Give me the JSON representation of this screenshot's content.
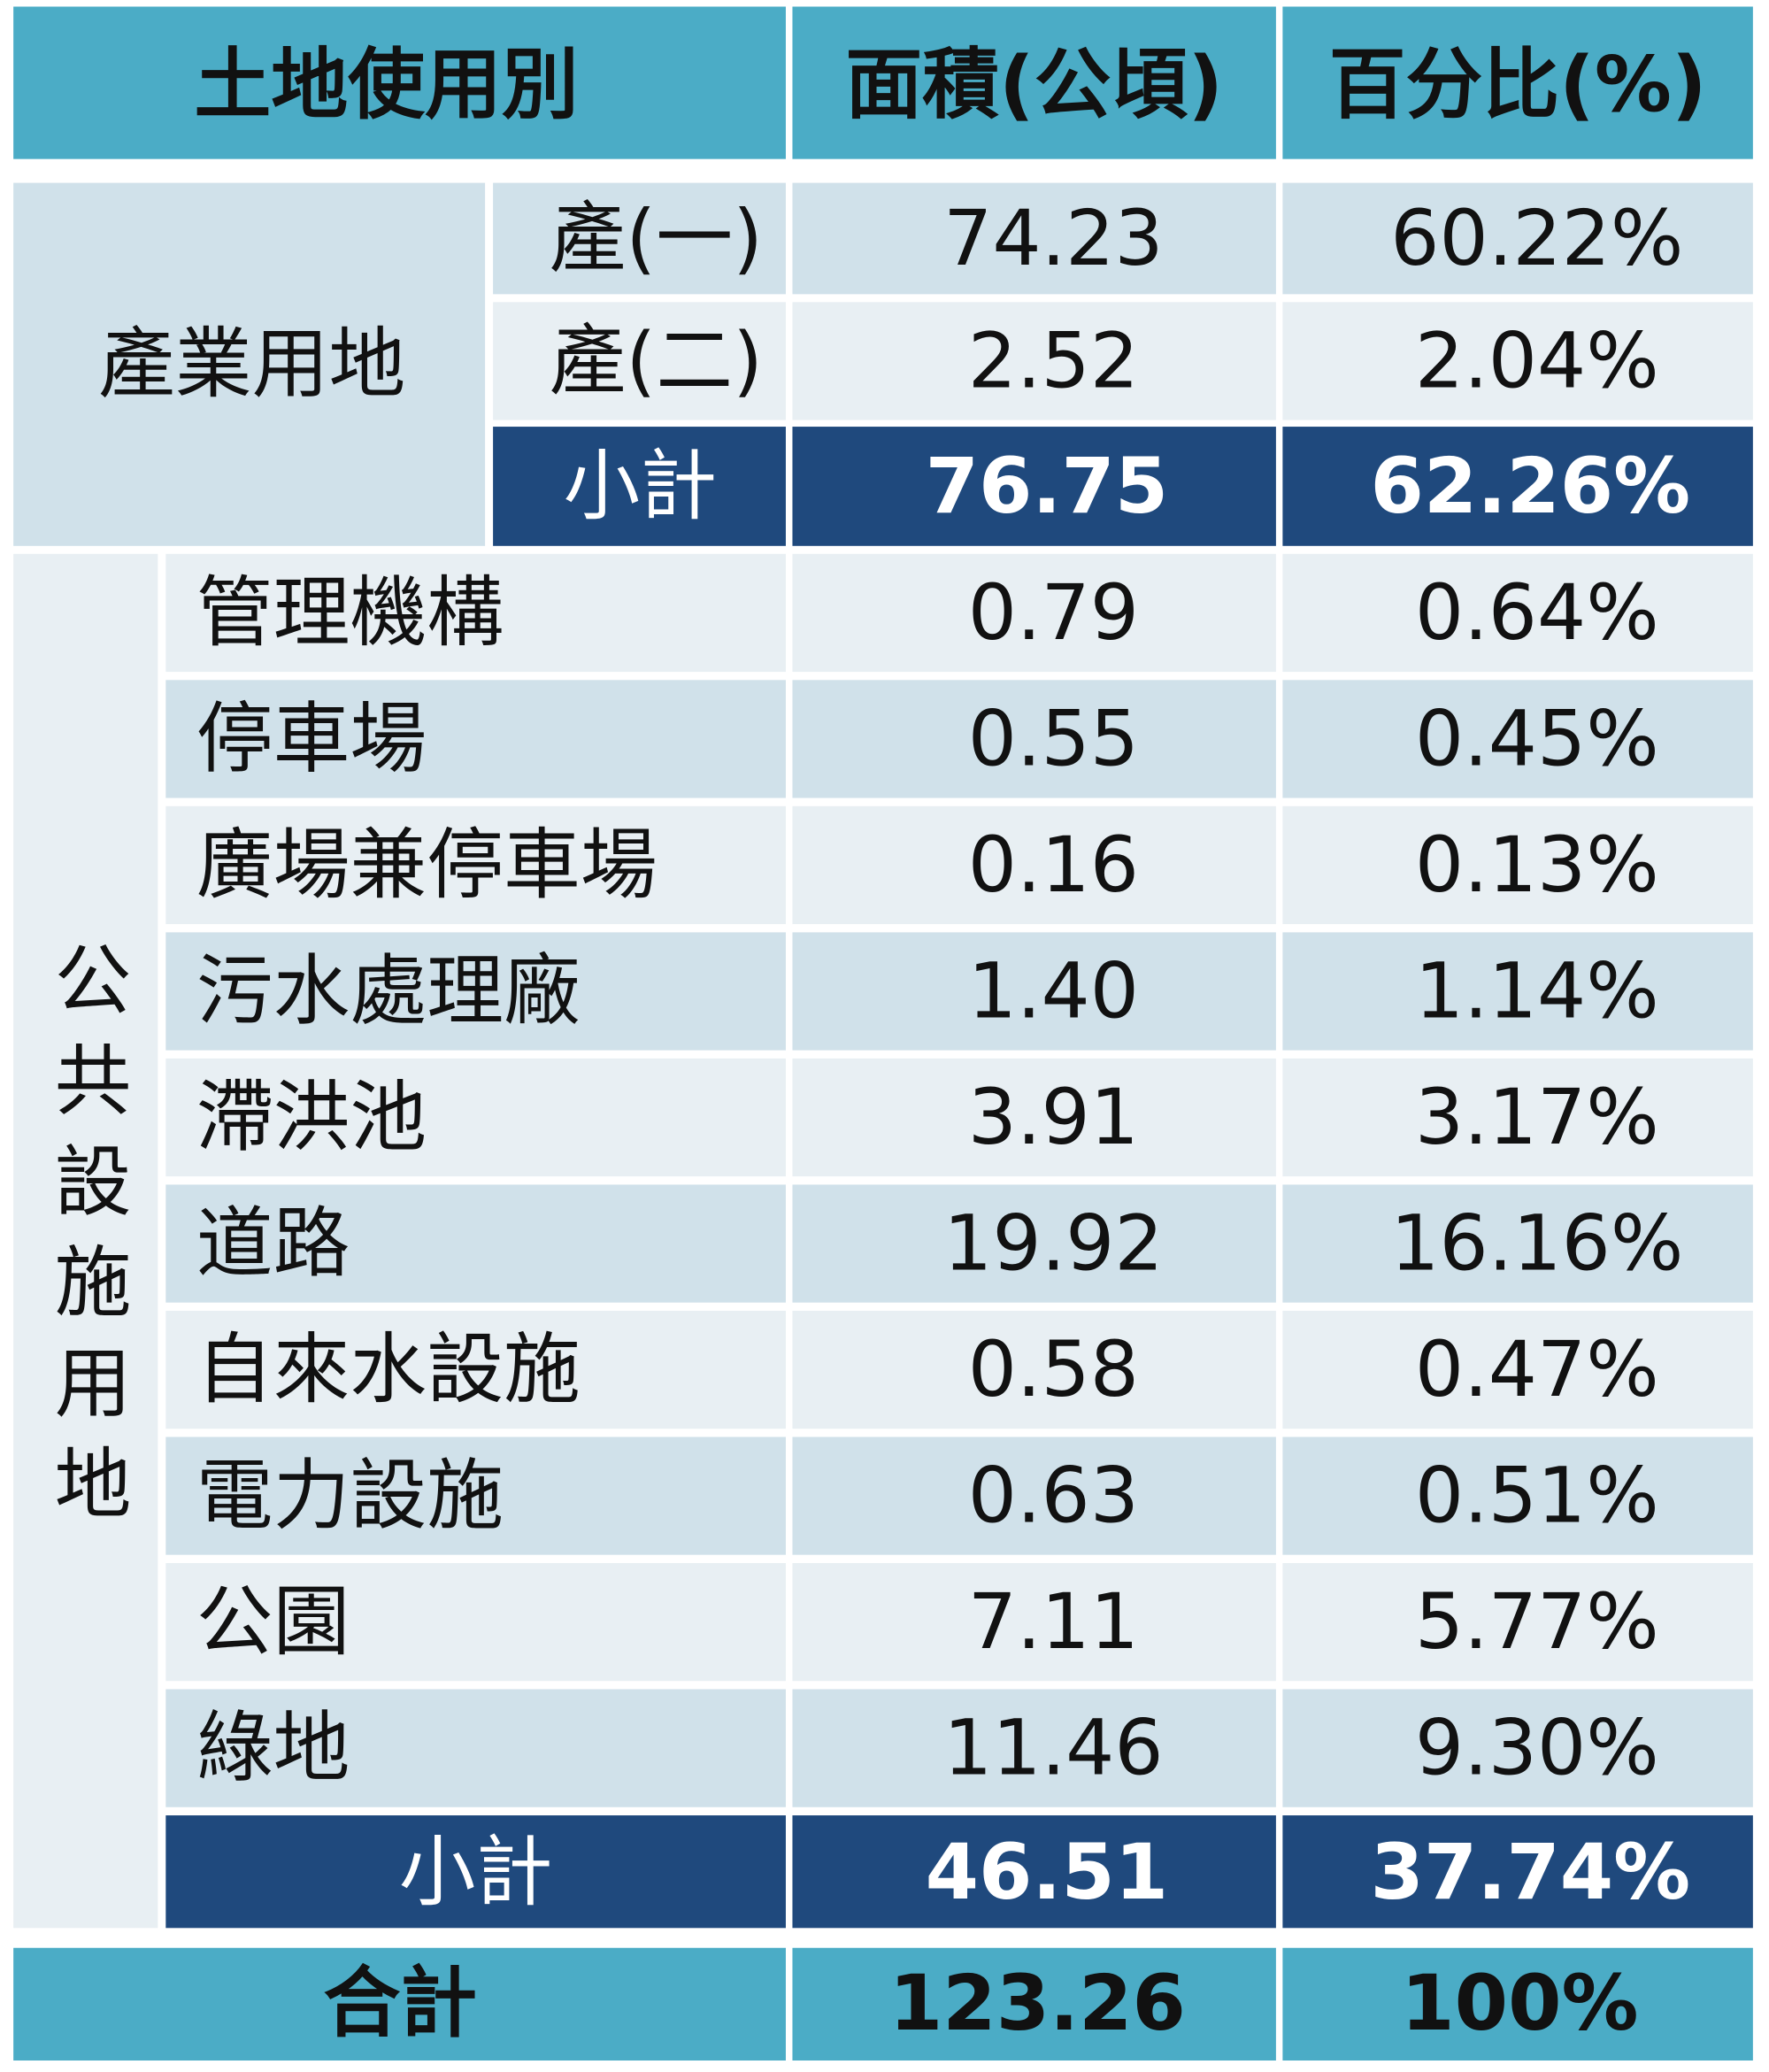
{
  "header": [
    "土地使用別",
    "面積(公頃)",
    "百分比(%)"
  ],
  "industrial": {
    "label": "產業用地",
    "rows": [
      {
        "name": "產(一)",
        "area": "74.23",
        "pct": "60.22%"
      },
      {
        "name": "產(二)",
        "area": "2.52",
        "pct": "2.04%"
      }
    ],
    "subtotal": {
      "label": "小計",
      "area": "76.75",
      "pct": "62.26%"
    }
  },
  "public": {
    "label": "公共設施用地",
    "rows": [
      {
        "name": "管理機構",
        "area": "0.79",
        "pct": "0.64%"
      },
      {
        "name": "停車場",
        "area": "0.55",
        "pct": "0.45%"
      },
      {
        "name": "廣場兼停車場",
        "area": "0.16",
        "pct": "0.13%"
      },
      {
        "name": "污水處理廠",
        "area": "1.40",
        "pct": "1.14%"
      },
      {
        "name": "滯洪池",
        "area": "3.91",
        "pct": "3.17%"
      },
      {
        "name": "道路",
        "area": "19.92",
        "pct": "16.16%"
      },
      {
        "name": "自來水設施",
        "area": "0.58",
        "pct": "0.47%"
      },
      {
        "name": "電力設施",
        "area": "0.63",
        "pct": "0.51%"
      },
      {
        "name": "公園",
        "area": "7.11",
        "pct": "5.77%"
      },
      {
        "name": "綠地",
        "area": "11.46",
        "pct": "9.30%"
      }
    ],
    "subtotal": {
      "label": "小計",
      "area": "46.51",
      "pct": "37.74%"
    }
  },
  "total": {
    "label": "合計",
    "area": "123.26",
    "pct": "100%"
  }
}
